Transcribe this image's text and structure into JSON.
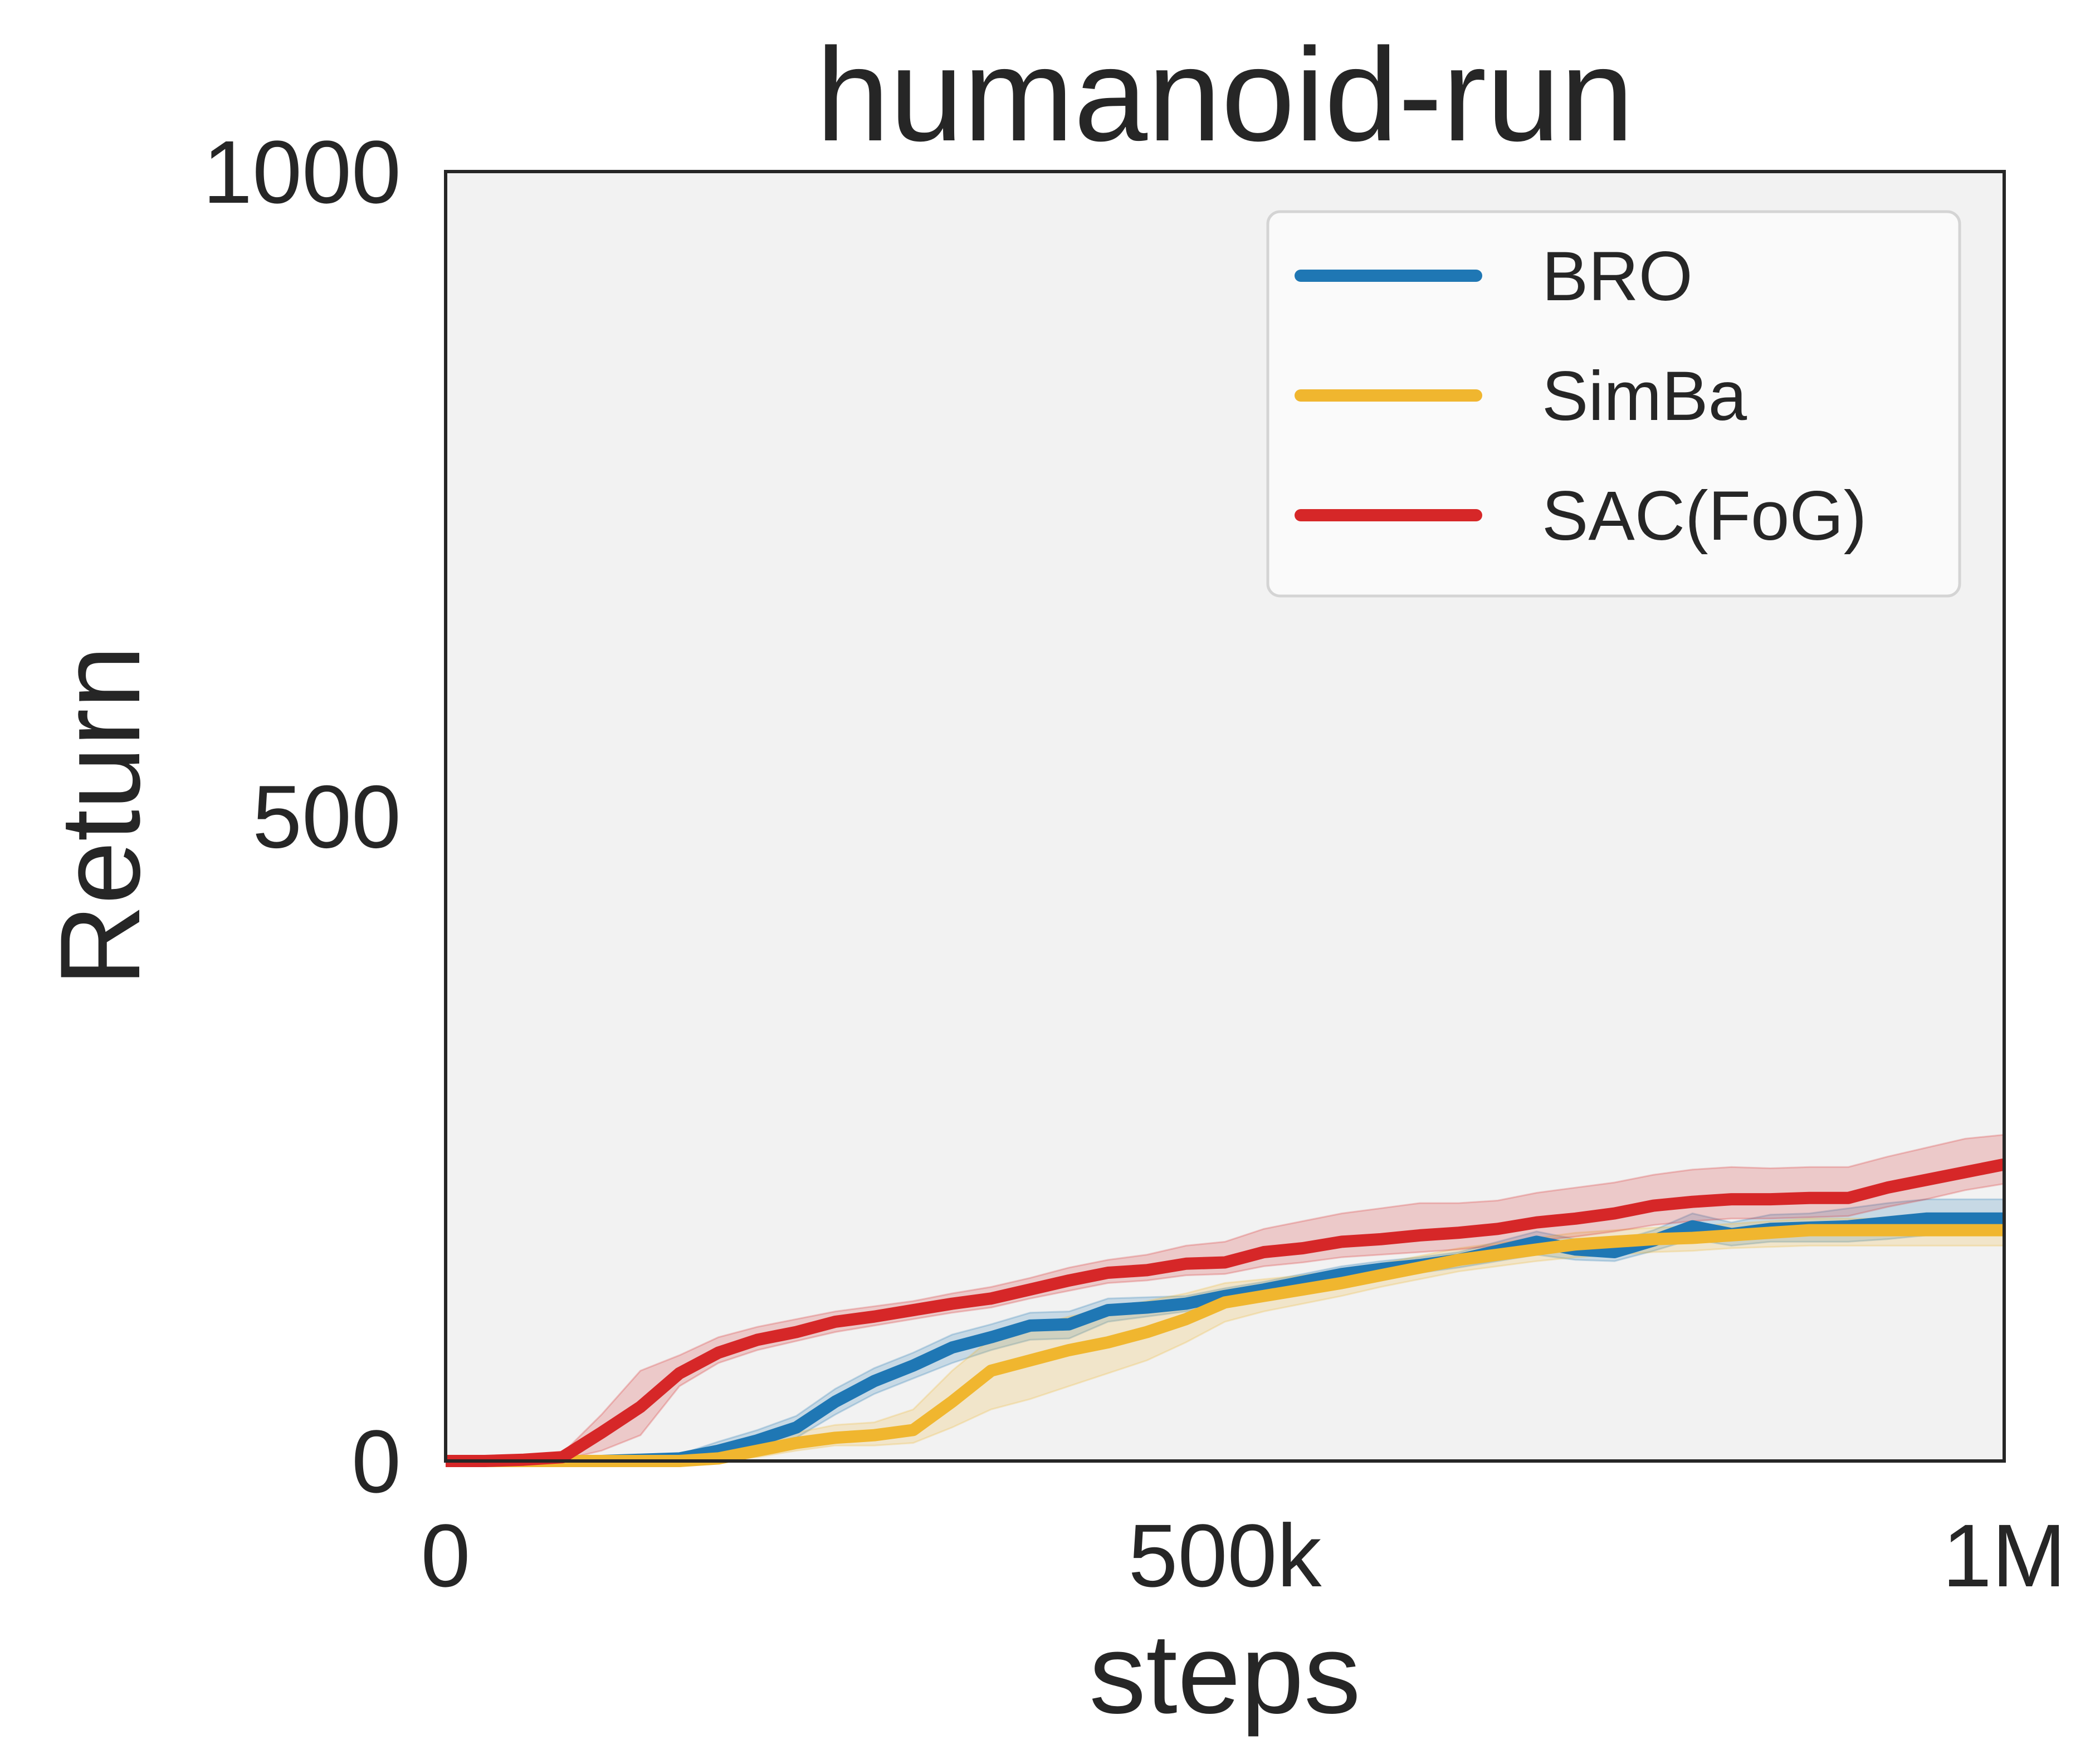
{
  "chart_data": {
    "type": "line",
    "title": "humanoid-run",
    "xlabel": "steps",
    "ylabel": "Return",
    "xlim": [
      0,
      1000000
    ],
    "ylim": [
      0,
      1000
    ],
    "xticks": [
      0,
      500000,
      1000000
    ],
    "xtick_labels": [
      "0",
      "500k",
      "1M"
    ],
    "yticks": [
      0,
      500,
      1000
    ],
    "ytick_labels": [
      "0",
      "500",
      "1000"
    ],
    "grid": false,
    "legend_position": "top-right",
    "x": [
      0,
      25000,
      50000,
      75000,
      100000,
      125000,
      150000,
      175000,
      200000,
      225000,
      250000,
      275000,
      300000,
      325000,
      350000,
      375000,
      400000,
      425000,
      450000,
      475000,
      500000,
      525000,
      550000,
      575000,
      600000,
      625000,
      650000,
      675000,
      700000,
      725000,
      750000,
      775000,
      800000,
      825000,
      850000,
      875000,
      900000,
      925000,
      950000,
      975000,
      1000000
    ],
    "series": [
      {
        "name": "BRO",
        "color": "#1f77b4",
        "values": [
          0,
          0,
          0,
          0,
          0,
          1,
          2,
          8,
          16,
          26,
          46,
          62,
          74,
          88,
          96,
          105,
          106,
          117,
          119,
          122,
          128,
          133,
          139,
          145,
          149,
          152,
          156,
          163,
          170,
          164,
          162,
          171,
          182,
          176,
          180,
          181,
          182,
          185,
          188,
          188,
          188
        ],
        "lower": [
          0,
          0,
          0,
          0,
          0,
          0,
          0,
          3,
          10,
          18,
          36,
          52,
          64,
          76,
          86,
          94,
          95,
          108,
          112,
          116,
          122,
          127,
          133,
          139,
          143,
          146,
          150,
          155,
          160,
          156,
          155,
          163,
          172,
          167,
          170,
          170,
          170,
          172,
          175,
          175,
          175
        ],
        "upper": [
          0,
          0,
          0,
          0,
          0,
          3,
          5,
          15,
          24,
          35,
          56,
          72,
          84,
          98,
          106,
          115,
          116,
          126,
          127,
          128,
          134,
          139,
          145,
          151,
          155,
          158,
          162,
          170,
          178,
          172,
          170,
          179,
          192,
          185,
          191,
          192,
          196,
          200,
          203,
          203,
          203
        ]
      },
      {
        "name": "SimBa",
        "color": "#f0b62f",
        "values": [
          0,
          0,
          0,
          0,
          0,
          0,
          0,
          2,
          8,
          14,
          18,
          20,
          24,
          46,
          70,
          78,
          86,
          92,
          100,
          110,
          123,
          128,
          133,
          138,
          144,
          150,
          156,
          160,
          164,
          168,
          170,
          172,
          173,
          175,
          177,
          179,
          179,
          179,
          179,
          179,
          179
        ],
        "lower": [
          0,
          0,
          0,
          0,
          0,
          0,
          0,
          0,
          3,
          8,
          12,
          12,
          14,
          26,
          40,
          48,
          58,
          68,
          78,
          92,
          108,
          116,
          122,
          128,
          135,
          141,
          147,
          151,
          155,
          158,
          160,
          162,
          163,
          165,
          166,
          167,
          167,
          167,
          167,
          167,
          167
        ],
        "upper": [
          0,
          0,
          0,
          0,
          0,
          0,
          2,
          6,
          14,
          22,
          28,
          30,
          40,
          70,
          95,
          104,
          112,
          118,
          124,
          130,
          138,
          141,
          144,
          148,
          153,
          159,
          165,
          169,
          173,
          177,
          179,
          181,
          182,
          184,
          186,
          188,
          188,
          188,
          188,
          188,
          188
        ]
      },
      {
        "name": "SAC(FoG)",
        "color": "#d62728",
        "values": [
          0,
          0,
          1,
          3,
          22,
          42,
          68,
          84,
          94,
          100,
          108,
          112,
          117,
          122,
          126,
          133,
          140,
          146,
          148,
          153,
          154,
          162,
          165,
          170,
          172,
          175,
          177,
          180,
          185,
          188,
          192,
          198,
          201,
          203,
          203,
          204,
          204,
          212,
          218,
          224,
          230
        ],
        "lower": [
          0,
          0,
          0,
          1,
          8,
          20,
          58,
          76,
          86,
          93,
          100,
          105,
          110,
          115,
          119,
          126,
          132,
          138,
          140,
          144,
          145,
          151,
          154,
          158,
          160,
          162,
          164,
          167,
          171,
          174,
          178,
          183,
          186,
          188,
          188,
          189,
          190,
          197,
          203,
          210,
          215
        ],
        "upper": [
          0,
          0,
          2,
          6,
          36,
          70,
          82,
          96,
          104,
          110,
          116,
          120,
          124,
          130,
          135,
          142,
          150,
          156,
          160,
          167,
          170,
          180,
          186,
          192,
          196,
          200,
          200,
          202,
          208,
          212,
          216,
          222,
          226,
          228,
          227,
          228,
          228,
          236,
          243,
          250,
          253
        ]
      }
    ]
  }
}
